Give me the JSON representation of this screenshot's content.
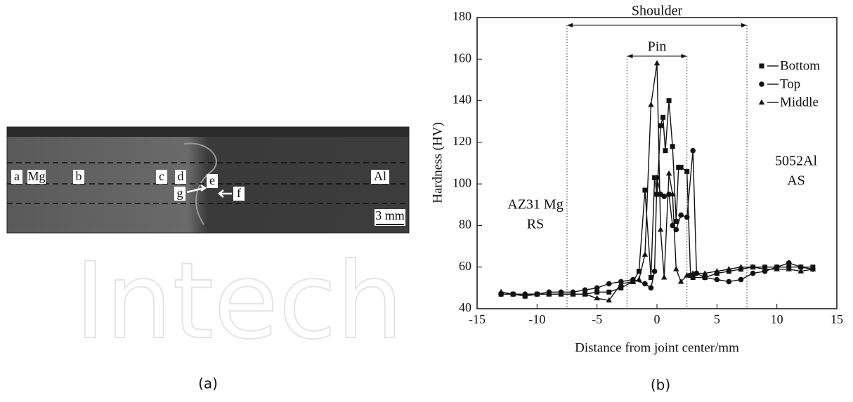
{
  "micrograph": {
    "labels": [
      "a",
      "Mg",
      "b",
      "c",
      "d",
      "e",
      "f",
      "g",
      "Al"
    ],
    "scale_bar": "3 mm"
  },
  "watermark": "Intech",
  "captions": [
    "(a)",
    "(b)"
  ],
  "chart_data": {
    "type": "line",
    "xlabel": "Distance from joint center/mm",
    "ylabel": "Hardness (HV)",
    "xlim": [
      -15,
      15
    ],
    "xticks": [
      -15,
      -10,
      -5,
      0,
      5,
      10,
      15
    ],
    "ylim": [
      40,
      180
    ],
    "yticks": [
      40,
      60,
      80,
      100,
      120,
      140,
      160,
      180
    ],
    "legend": "upper right",
    "regions": [
      {
        "label": "Shoulder",
        "from": -7.5,
        "to": 7.5
      },
      {
        "label": "Pin",
        "from": -2.5,
        "to": 2.5
      }
    ],
    "annotations": [
      "AZ31 Mg",
      "RS",
      "5052Al",
      "AS"
    ],
    "series": [
      {
        "name": "Bottom",
        "marker": "square",
        "color": "#111",
        "x": [
          -13,
          -12,
          -11,
          -10,
          -9,
          -8,
          -7,
          -6,
          -5,
          -4,
          -3,
          -2,
          -1.5,
          -1,
          -0.5,
          -0.2,
          0,
          0.3,
          0.5,
          0.7,
          1,
          1.3,
          1.6,
          1.8,
          2,
          2.5,
          2.8,
          3,
          4,
          5,
          6,
          7,
          8,
          9,
          10,
          11,
          12,
          13
        ],
        "values": [
          47,
          47,
          46,
          47,
          47,
          47,
          47,
          47,
          48,
          48,
          50,
          53,
          58,
          97,
          55,
          103,
          95,
          128,
          132,
          116,
          140,
          118,
          82,
          108,
          108,
          106,
          56,
          55,
          55,
          57,
          58,
          59,
          60,
          60,
          60,
          60,
          60,
          60
        ]
      },
      {
        "name": "Top",
        "marker": "circle",
        "color": "#111",
        "x": [
          -13,
          -12,
          -11,
          -10,
          -9,
          -8,
          -7,
          -6,
          -5,
          -4,
          -3,
          -2,
          -1,
          -0.5,
          -0.2,
          0,
          0.3,
          0.6,
          1,
          1.3,
          1.6,
          2,
          2.5,
          3,
          3.3,
          4,
          5,
          6,
          7,
          8,
          9,
          10,
          11,
          12,
          13
        ],
        "values": [
          47,
          47,
          47,
          47,
          48,
          48,
          48,
          49,
          50,
          52,
          53,
          54,
          52,
          50,
          58,
          103,
          95,
          94,
          95,
          80,
          78,
          85,
          84,
          116,
          57,
          55,
          54,
          53,
          54,
          57,
          58,
          60,
          62,
          60,
          59
        ]
      },
      {
        "name": "Middle",
        "marker": "triangle",
        "color": "#111",
        "x": [
          -13,
          -12,
          -11,
          -10,
          -9,
          -8,
          -7,
          -6,
          -5,
          -4,
          -3,
          -2,
          -1.5,
          -1,
          -0.5,
          0,
          0.3,
          0.6,
          1,
          1.3,
          1.6,
          2,
          2.5,
          3,
          4,
          5,
          6,
          7,
          8,
          9,
          10,
          11,
          12,
          13
        ],
        "values": [
          48,
          47,
          47,
          47,
          47,
          47,
          47,
          47,
          45,
          44,
          52,
          53,
          54,
          66,
          138,
          158,
          78,
          55,
          105,
          95,
          59,
          53,
          56,
          57,
          57,
          58,
          59,
          60,
          60,
          59,
          59,
          59,
          58,
          59
        ]
      }
    ]
  }
}
